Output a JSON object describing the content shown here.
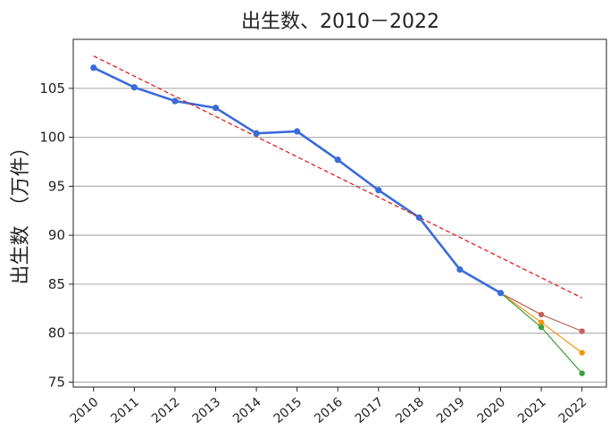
{
  "chart_data": {
    "type": "line",
    "title": "出生数、2010－2022",
    "ylabel": "出生数　（万件）",
    "xlabel": "",
    "ylim": [
      74.5,
      110
    ],
    "xlim": [
      2009.5,
      2022.6
    ],
    "yticks": [
      75,
      80,
      85,
      90,
      95,
      100,
      105
    ],
    "x": [
      2010,
      2011,
      2012,
      2013,
      2014,
      2015,
      2016,
      2017,
      2018,
      2019,
      2020,
      2021,
      2022
    ],
    "grid": "horizontal",
    "series": [
      {
        "color": "#3a6bd8",
        "style": "solid-thick",
        "points": [
          [
            2010,
            107.1
          ],
          [
            2011,
            105.1
          ],
          [
            2012,
            103.7
          ],
          [
            2013,
            103.0
          ],
          [
            2014,
            100.4
          ],
          [
            2015,
            100.6
          ],
          [
            2016,
            97.7
          ],
          [
            2017,
            94.6
          ],
          [
            2018,
            91.8
          ],
          [
            2019,
            86.5
          ],
          [
            2020,
            84.1
          ]
        ]
      },
      {
        "color": "#e02020",
        "style": "dashed",
        "markers": false,
        "points": [
          [
            2010,
            108.3
          ],
          [
            2022,
            83.6
          ]
        ]
      },
      {
        "color": "#c0625a",
        "style": "solid-thin",
        "points": [
          [
            2020,
            84.1
          ],
          [
            2021,
            81.9
          ],
          [
            2022,
            80.2
          ]
        ]
      },
      {
        "color": "#f0960a",
        "style": "solid-thin",
        "points": [
          [
            2020,
            84.1
          ],
          [
            2021,
            81.1
          ],
          [
            2022,
            78.0
          ]
        ]
      },
      {
        "color": "#3e9e3e",
        "style": "solid-thin",
        "points": [
          [
            2020,
            84.1
          ],
          [
            2021,
            80.6
          ],
          [
            2022,
            75.9
          ]
        ]
      }
    ]
  }
}
